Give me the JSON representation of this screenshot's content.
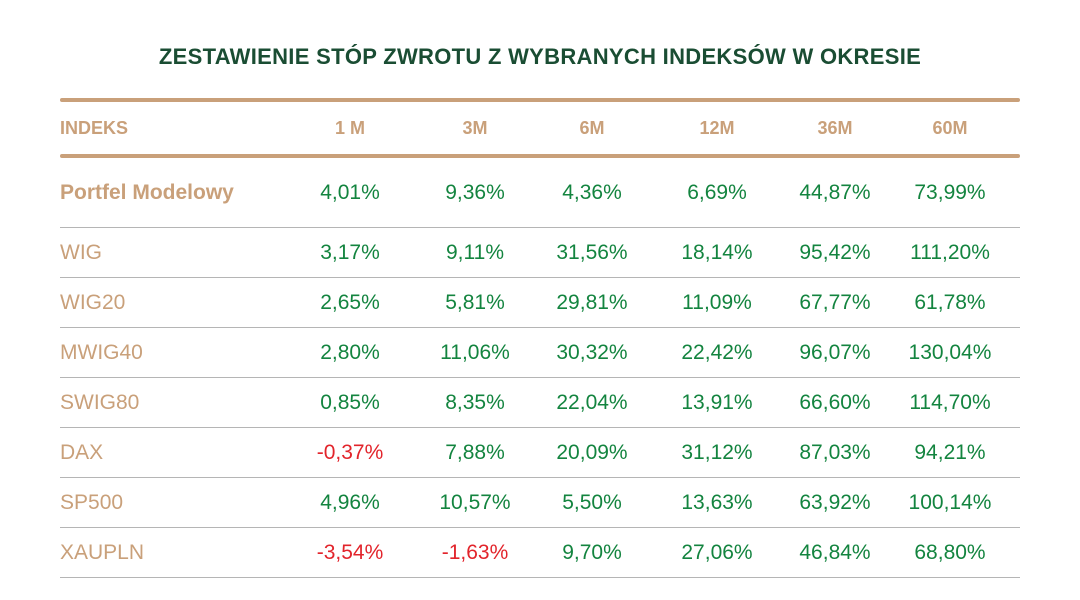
{
  "title": "ZESTAWIENIE STÓP ZWROTU Z WYBRANYCH INDEKSÓW W OKRESIE",
  "colors": {
    "title": "#1a4d33",
    "accent": "#c9a07a",
    "positive": "#13843f",
    "negative": "#e2242b"
  },
  "headers": [
    "INDEKS",
    "1 M",
    "3M",
    "6M",
    "12M",
    "36M",
    "60M"
  ],
  "rows": [
    {
      "name": "Portfel Modelowy",
      "values": [
        "4,01%",
        "9,36%",
        "4,36%",
        "6,69%",
        "44,87%",
        "73,99%"
      ]
    },
    {
      "name": "WIG",
      "values": [
        "3,17%",
        "9,11%",
        "31,56%",
        "18,14%",
        "95,42%",
        "111,20%"
      ]
    },
    {
      "name": "WIG20",
      "values": [
        "2,65%",
        "5,81%",
        "29,81%",
        "11,09%",
        "67,77%",
        "61,78%"
      ]
    },
    {
      "name": "MWIG40",
      "values": [
        "2,80%",
        "11,06%",
        "30,32%",
        "22,42%",
        "96,07%",
        "130,04%"
      ]
    },
    {
      "name": "SWIG80",
      "values": [
        "0,85%",
        "8,35%",
        "22,04%",
        "13,91%",
        "66,60%",
        "114,70%"
      ]
    },
    {
      "name": "DAX",
      "values": [
        "-0,37%",
        "7,88%",
        "20,09%",
        "31,12%",
        "87,03%",
        "94,21%"
      ]
    },
    {
      "name": "SP500",
      "values": [
        "4,96%",
        "10,57%",
        "5,50%",
        "13,63%",
        "63,92%",
        "100,14%"
      ]
    },
    {
      "name": "XAUPLN",
      "values": [
        "-3,54%",
        "-1,63%",
        "9,70%",
        "27,06%",
        "46,84%",
        "68,80%"
      ]
    }
  ]
}
